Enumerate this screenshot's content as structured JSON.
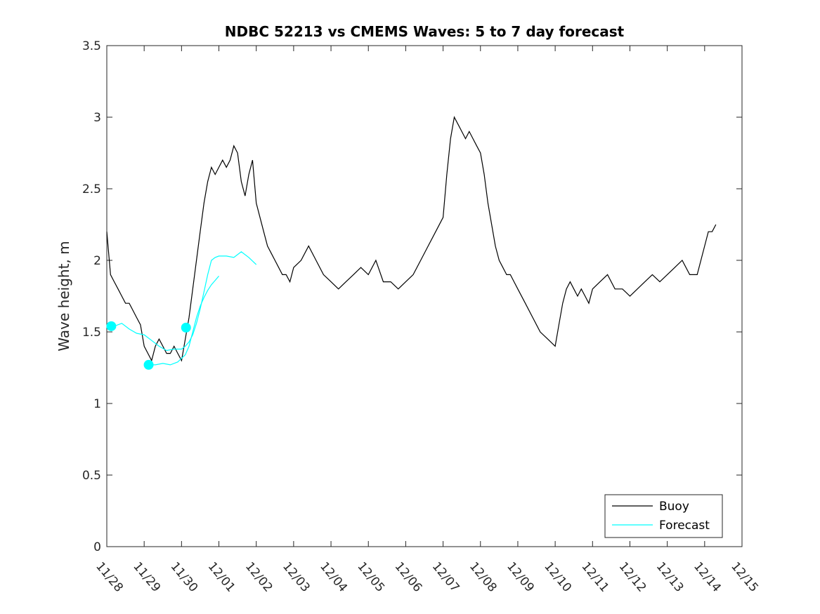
{
  "chart_data": {
    "type": "line",
    "title": "NDBC 52213 vs CMEMS Waves: 5 to 7 day forecast",
    "xlabel": "",
    "ylabel": "Wave height, m",
    "x_ticks": [
      "11/28",
      "11/29",
      "11/30",
      "12/01",
      "12/02",
      "12/03",
      "12/04",
      "12/05",
      "12/06",
      "12/07",
      "12/08",
      "12/09",
      "12/10",
      "12/11",
      "12/12",
      "12/13",
      "12/14",
      "12/15"
    ],
    "y_ticks": [
      "0",
      "0.5",
      "1",
      "1.5",
      "2",
      "2.5",
      "3",
      "3.5"
    ],
    "xlim": [
      0,
      17
    ],
    "ylim": [
      0,
      3.5
    ],
    "x_units": "days since 11/28",
    "grid": false,
    "legend_position": "bottom-right",
    "series": [
      {
        "name": "Buoy",
        "color": "#000000",
        "x": [
          0.0,
          0.1,
          0.2,
          0.3,
          0.4,
          0.5,
          0.6,
          0.7,
          0.8,
          0.9,
          1.0,
          1.1,
          1.2,
          1.3,
          1.4,
          1.5,
          1.6,
          1.7,
          1.8,
          1.9,
          2.0,
          2.1,
          2.2,
          2.3,
          2.4,
          2.5,
          2.6,
          2.7,
          2.8,
          2.9,
          3.0,
          3.1,
          3.2,
          3.3,
          3.4,
          3.5,
          3.6,
          3.7,
          3.8,
          3.9,
          4.0,
          4.1,
          4.2,
          4.3,
          4.4,
          4.5,
          4.6,
          4.7,
          4.8,
          4.9,
          5.0,
          5.2,
          5.4,
          5.6,
          5.8,
          6.0,
          6.2,
          6.4,
          6.6,
          6.8,
          7.0,
          7.2,
          7.4,
          7.6,
          7.8,
          8.0,
          8.2,
          8.4,
          8.6,
          8.8,
          9.0,
          9.1,
          9.2,
          9.3,
          9.4,
          9.5,
          9.6,
          9.7,
          9.8,
          9.9,
          10.0,
          10.1,
          10.2,
          10.3,
          10.4,
          10.5,
          10.6,
          10.7,
          10.8,
          10.9,
          11.0,
          11.2,
          11.4,
          11.6,
          11.8,
          12.0,
          12.1,
          12.2,
          12.3,
          12.4,
          12.5,
          12.6,
          12.7,
          12.8,
          12.9,
          13.0,
          13.2,
          13.4,
          13.6,
          13.8,
          14.0,
          14.2,
          14.4,
          14.6,
          14.8,
          15.0,
          15.2,
          15.4,
          15.6,
          15.8,
          16.0,
          16.1,
          16.2,
          16.3
        ],
        "values": [
          2.2,
          1.9,
          1.85,
          1.8,
          1.75,
          1.7,
          1.7,
          1.65,
          1.6,
          1.55,
          1.4,
          1.35,
          1.3,
          1.4,
          1.45,
          1.4,
          1.35,
          1.35,
          1.4,
          1.35,
          1.3,
          1.45,
          1.6,
          1.8,
          2.0,
          2.2,
          2.4,
          2.55,
          2.65,
          2.6,
          2.65,
          2.7,
          2.65,
          2.7,
          2.8,
          2.75,
          2.55,
          2.45,
          2.6,
          2.7,
          2.4,
          2.3,
          2.2,
          2.1,
          2.05,
          2.0,
          1.95,
          1.9,
          1.9,
          1.85,
          1.95,
          2.0,
          2.1,
          2.0,
          1.9,
          1.85,
          1.8,
          1.85,
          1.9,
          1.95,
          1.9,
          2.0,
          1.85,
          1.85,
          1.8,
          1.85,
          1.9,
          2.0,
          2.1,
          2.2,
          2.3,
          2.6,
          2.85,
          3.0,
          2.95,
          2.9,
          2.85,
          2.9,
          2.85,
          2.8,
          2.75,
          2.6,
          2.4,
          2.25,
          2.1,
          2.0,
          1.95,
          1.9,
          1.9,
          1.85,
          1.8,
          1.7,
          1.6,
          1.5,
          1.45,
          1.4,
          1.55,
          1.7,
          1.8,
          1.85,
          1.8,
          1.75,
          1.8,
          1.75,
          1.7,
          1.8,
          1.85,
          1.9,
          1.8,
          1.8,
          1.75,
          1.8,
          1.85,
          1.9,
          1.85,
          1.9,
          1.95,
          2.0,
          1.9,
          1.9,
          2.1,
          2.2,
          2.2,
          2.25
        ]
      },
      {
        "name": "Forecast",
        "color": "#00ffff",
        "x": [
          0.0,
          0.2,
          0.4,
          0.6,
          0.8,
          1.0,
          1.2,
          1.4,
          1.6,
          1.8,
          2.0,
          2.1,
          2.2,
          2.3,
          2.4,
          2.5,
          2.6,
          2.7,
          2.8,
          2.9,
          3.0,
          3.2,
          3.4,
          3.6,
          3.8,
          4.0
        ],
        "values": [
          1.54,
          1.54,
          1.56,
          1.52,
          1.49,
          1.48,
          1.44,
          1.4,
          1.37,
          1.38,
          1.38,
          1.4,
          1.43,
          1.48,
          1.56,
          1.66,
          1.78,
          1.9,
          2.0,
          2.02,
          2.03,
          2.03,
          2.02,
          2.06,
          2.02,
          1.97
        ]
      },
      {
        "name": "",
        "color": "#00ffff",
        "x": [
          1.1,
          1.3,
          1.5,
          1.7,
          1.9,
          2.1,
          2.2,
          2.3,
          2.4,
          2.5,
          2.6,
          2.7,
          2.8,
          2.9,
          3.0
        ],
        "values": [
          1.27,
          1.27,
          1.28,
          1.27,
          1.29,
          1.34,
          1.4,
          1.5,
          1.6,
          1.68,
          1.74,
          1.79,
          1.83,
          1.86,
          1.89
        ]
      }
    ],
    "markers": [
      {
        "x": 0.12,
        "y": 1.54,
        "color": "#00ffff"
      },
      {
        "x": 1.12,
        "y": 1.27,
        "color": "#00ffff"
      },
      {
        "x": 2.12,
        "y": 1.53,
        "color": "#00ffff"
      }
    ]
  }
}
